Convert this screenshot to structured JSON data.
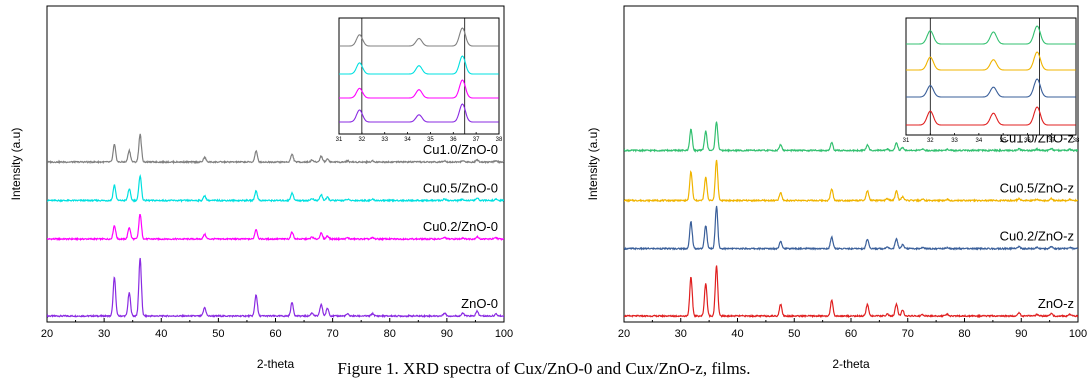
{
  "caption": "Figure 1. XRD spectra of Cux/ZnO-0 and Cux/ZnO-z, films.",
  "chart_data": [
    {
      "type": "line",
      "xlabel": "2-theta",
      "ylabel": "Intensity (a.u)",
      "xlim": [
        20,
        100
      ],
      "xticks": [
        20,
        30,
        40,
        50,
        60,
        70,
        80,
        90,
        100
      ],
      "peaks_deg": [
        31.8,
        34.4,
        36.3,
        47.6,
        56.6,
        62.9,
        66.4,
        68.0,
        69.1,
        72.6,
        77.0,
        89.6,
        92.8,
        95.3,
        98.6
      ],
      "series": [
        {
          "name": "ZnO-0",
          "color": "#8a2be2",
          "baseline": 0.0,
          "peak_heights": [
            1.0,
            0.6,
            1.5,
            0.22,
            0.55,
            0.35,
            0.08,
            0.3,
            0.2,
            0.05,
            0.06,
            0.08,
            0.07,
            0.12,
            0.05
          ]
        },
        {
          "name": "Cu0.2/ZnO-0",
          "color": "#ff00ff",
          "baseline": 2.0,
          "peak_heights": [
            0.35,
            0.3,
            0.65,
            0.12,
            0.25,
            0.18,
            0.05,
            0.15,
            0.08,
            0.03,
            0.03,
            0.04,
            0.03,
            0.06,
            0.03
          ]
        },
        {
          "name": "Cu0.5/ZnO-0",
          "color": "#00e0e0",
          "baseline": 3.0,
          "peak_heights": [
            0.4,
            0.3,
            0.65,
            0.12,
            0.25,
            0.2,
            0.05,
            0.15,
            0.08,
            0.03,
            0.03,
            0.04,
            0.03,
            0.06,
            0.03
          ]
        },
        {
          "name": "Cu1.0/ZnO-0",
          "color": "#808080",
          "baseline": 4.0,
          "peak_heights": [
            0.45,
            0.3,
            0.72,
            0.12,
            0.28,
            0.2,
            0.05,
            0.15,
            0.08,
            0.03,
            0.03,
            0.04,
            0.03,
            0.06,
            0.03
          ]
        }
      ],
      "inset": {
        "xlim": [
          31,
          38
        ],
        "xticks": [
          31,
          32,
          33,
          34,
          35,
          36,
          37,
          38
        ],
        "vlines": [
          32,
          36.5
        ],
        "peaks_deg": [
          31.9,
          34.5,
          36.4
        ]
      }
    },
    {
      "type": "line",
      "xlabel": "2-theta",
      "ylabel": "Intensity (a.u)",
      "xlim": [
        20,
        100
      ],
      "xticks": [
        20,
        30,
        40,
        50,
        60,
        70,
        80,
        90,
        100
      ],
      "peaks_deg": [
        31.8,
        34.4,
        36.3,
        47.6,
        56.6,
        62.9,
        66.4,
        68.0,
        69.1,
        72.6,
        77.0,
        89.6,
        92.8,
        95.3,
        98.6
      ],
      "series": [
        {
          "name": "ZnO-z",
          "color": "#e02020",
          "baseline": 0.0,
          "peak_heights": [
            1.0,
            0.85,
            1.3,
            0.3,
            0.4,
            0.3,
            0.05,
            0.3,
            0.15,
            0.03,
            0.04,
            0.08,
            0.04,
            0.06,
            0.04
          ]
        },
        {
          "name": "Cu0.2/ZnO-z",
          "color": "#3a5f9a",
          "baseline": 1.75,
          "peak_heights": [
            0.7,
            0.6,
            1.1,
            0.2,
            0.3,
            0.25,
            0.05,
            0.25,
            0.1,
            0.03,
            0.03,
            0.05,
            0.03,
            0.05,
            0.03
          ]
        },
        {
          "name": "Cu0.5/ZnO-z",
          "color": "#f0b400",
          "baseline": 3.0,
          "peak_heights": [
            0.75,
            0.6,
            1.05,
            0.2,
            0.3,
            0.25,
            0.05,
            0.25,
            0.1,
            0.03,
            0.03,
            0.05,
            0.03,
            0.05,
            0.03
          ]
        },
        {
          "name": "Cu1.0/ZnO-z",
          "color": "#33c070",
          "baseline": 4.3,
          "peak_heights": [
            0.55,
            0.5,
            0.75,
            0.15,
            0.2,
            0.15,
            0.04,
            0.2,
            0.08,
            0.03,
            0.03,
            0.04,
            0.03,
            0.05,
            0.03
          ]
        }
      ],
      "inset": {
        "xlim": [
          31,
          38
        ],
        "xticks": [
          31,
          32,
          33,
          34,
          35,
          36,
          37,
          38
        ],
        "vlines": [
          32,
          36.5
        ],
        "peaks_deg": [
          32.0,
          34.6,
          36.4
        ]
      }
    }
  ]
}
